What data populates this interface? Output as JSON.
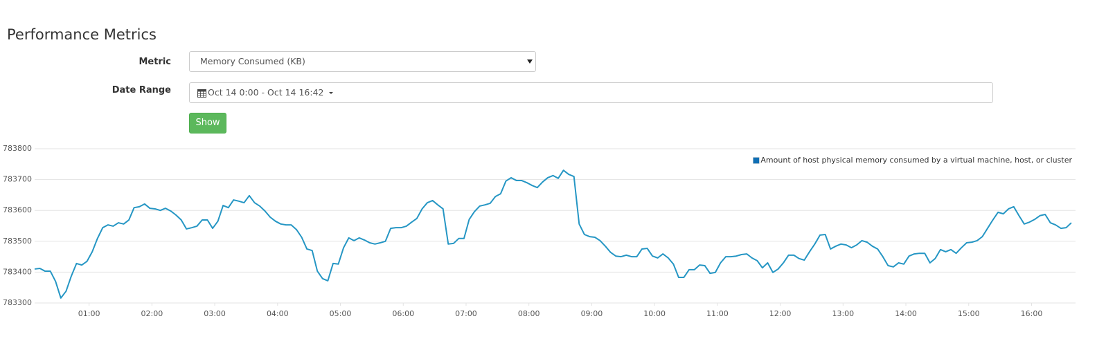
{
  "page": {
    "title": "Performance Metrics",
    "form": {
      "metric_label": "Metric",
      "metric_value": "Memory Consumed (KB)",
      "date_label": "Date Range",
      "date_value": "Oct 14 0:00 - Oct 14 16:42",
      "button": "Show"
    }
  },
  "chart_data": {
    "type": "line",
    "x": [
      8,
      13,
      18,
      23,
      28,
      33,
      38,
      43,
      48,
      53,
      58,
      63,
      68,
      73,
      78,
      83,
      88,
      93,
      98,
      103,
      108,
      113,
      118,
      123,
      128,
      133,
      138,
      143,
      148,
      153,
      158,
      163,
      168,
      173,
      178,
      183,
      188,
      193,
      198,
      203,
      208,
      213,
      218,
      223,
      228,
      233,
      238,
      243,
      248,
      253,
      258,
      263,
      268,
      273,
      278,
      283,
      288,
      293,
      298,
      303,
      308,
      313,
      318,
      323,
      328,
      333,
      338,
      343,
      348,
      353,
      358,
      363,
      368,
      373,
      378,
      383,
      388,
      393,
      398,
      403,
      408,
      413,
      418,
      423,
      428,
      433,
      438,
      443,
      448,
      453,
      458,
      463,
      468,
      473,
      478,
      483,
      488,
      493,
      498,
      503,
      508,
      513,
      518,
      523,
      528,
      533,
      538,
      543,
      548,
      553,
      558,
      563,
      568,
      573,
      578,
      583,
      588,
      593,
      598,
      603,
      608,
      613,
      618,
      623,
      628,
      633,
      638,
      643,
      648,
      653,
      658,
      663,
      668,
      673,
      678,
      683,
      688,
      693,
      698,
      703,
      708,
      713,
      718,
      723,
      728,
      733,
      738,
      743,
      748,
      753,
      758,
      763,
      768,
      773,
      778,
      783,
      788,
      793,
      798,
      803,
      808,
      813,
      818,
      823,
      828,
      833,
      838,
      843,
      848,
      853,
      858,
      863,
      868,
      873,
      878,
      883,
      888,
      893,
      898,
      903,
      908,
      913,
      918,
      923,
      928,
      933,
      938,
      943,
      948,
      953,
      958,
      963,
      968,
      973,
      978,
      983,
      988,
      993,
      998
    ],
    "series": [
      {
        "name": "Amount of host physical memory consumed by a virtual machine, host, or cluster",
        "color": "#2596c4",
        "legend_color": "#0f6fb5",
        "values": [
          783410,
          783412,
          783403,
          783403,
          783370,
          783316,
          783338,
          783387,
          783428,
          783423,
          783435,
          783466,
          783509,
          783544,
          783553,
          783549,
          783560,
          783556,
          783569,
          783609,
          783612,
          783621,
          783607,
          783605,
          783600,
          783607,
          783598,
          783585,
          783569,
          783540,
          783544,
          783549,
          783569,
          783569,
          783542,
          783565,
          783616,
          783609,
          783634,
          783630,
          783625,
          783648,
          783625,
          783614,
          783598,
          783578,
          783565,
          783556,
          783553,
          783553,
          783538,
          783513,
          783475,
          783470,
          783403,
          783379,
          783372,
          783428,
          783426,
          783479,
          783511,
          783502,
          783511,
          783504,
          783495,
          783491,
          783495,
          783500,
          783542,
          783544,
          783544,
          783549,
          783562,
          783574,
          783605,
          783625,
          783632,
          783618,
          783605,
          783491,
          783493,
          783509,
          783509,
          783571,
          783596,
          783614,
          783618,
          783623,
          783645,
          783654,
          783695,
          783706,
          783697,
          783697,
          783690,
          783681,
          783674,
          783692,
          783706,
          783713,
          783704,
          783730,
          783717,
          783710,
          783556,
          783522,
          783515,
          783513,
          783502,
          783484,
          783464,
          783452,
          783450,
          783455,
          783450,
          783450,
          783475,
          783477,
          783452,
          783446,
          783459,
          783446,
          783426,
          783383,
          783383,
          783408,
          783408,
          783423,
          783421,
          783396,
          783399,
          783430,
          783450,
          783450,
          783452,
          783457,
          783459,
          783446,
          783437,
          783414,
          783430,
          783399,
          783410,
          783430,
          783455,
          783455,
          783444,
          783439,
          783466,
          783491,
          783520,
          783522,
          783475,
          783484,
          783491,
          783488,
          783479,
          783488,
          783502,
          783497,
          783484,
          783475,
          783450,
          783421,
          783417,
          783430,
          783426,
          783452,
          783459,
          783461,
          783461,
          783430,
          783444,
          783473,
          783466,
          783473,
          783461,
          783479,
          783495,
          783497,
          783502,
          783515,
          783542,
          783569,
          783594,
          783589,
          783605,
          783612,
          783583,
          783556,
          783562,
          783571,
          783583,
          783587,
          783560,
          783553,
          783542,
          783544,
          783560
        ]
      }
    ],
    "xlim": [
      8,
      1002
    ],
    "xticks": [
      {
        "value": 60,
        "label": "01:00"
      },
      {
        "value": 120,
        "label": "02:00"
      },
      {
        "value": 180,
        "label": "03:00"
      },
      {
        "value": 240,
        "label": "04:00"
      },
      {
        "value": 300,
        "label": "05:00"
      },
      {
        "value": 360,
        "label": "06:00"
      },
      {
        "value": 420,
        "label": "07:00"
      },
      {
        "value": 480,
        "label": "08:00"
      },
      {
        "value": 540,
        "label": "09:00"
      },
      {
        "value": 600,
        "label": "10:00"
      },
      {
        "value": 660,
        "label": "11:00"
      },
      {
        "value": 720,
        "label": "12:00"
      },
      {
        "value": 780,
        "label": "13:00"
      },
      {
        "value": 840,
        "label": "14:00"
      },
      {
        "value": 900,
        "label": "15:00"
      },
      {
        "value": 960,
        "label": "16:00"
      }
    ],
    "ylim": [
      783300,
      783800
    ],
    "yticks": [
      783300,
      783400,
      783500,
      783600,
      783700,
      783800
    ],
    "grid": true,
    "legend": "top-right"
  }
}
